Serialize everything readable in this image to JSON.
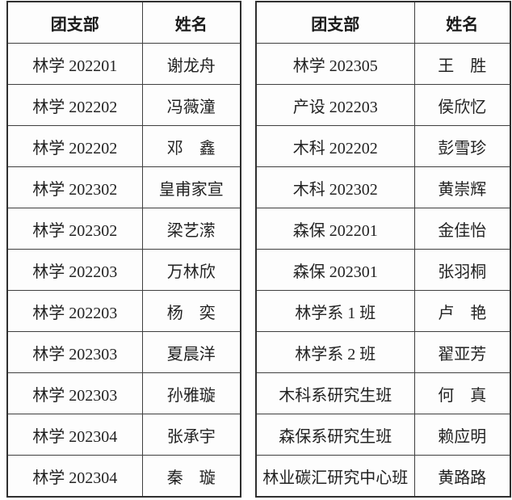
{
  "meta": {
    "description_colors": {
      "background": "#fefefe",
      "border": "#3f3f3f",
      "outer_border": "#2f2f2f",
      "text": "#222222"
    }
  },
  "tables": [
    {
      "id": "left",
      "headers": [
        "团支部",
        "姓名"
      ],
      "rows": [
        [
          "林学 202201",
          "谢龙舟"
        ],
        [
          "林学 202202",
          "冯薇潼"
        ],
        [
          "林学 202202",
          "邓　鑫"
        ],
        [
          "林学 202302",
          "皇甫家宣"
        ],
        [
          "林学 202302",
          "梁艺潆"
        ],
        [
          "林学 202203",
          "万林欣"
        ],
        [
          "林学 202203",
          "杨　奕"
        ],
        [
          "林学 202303",
          "夏晨洋"
        ],
        [
          "林学 202303",
          "孙雅璇"
        ],
        [
          "林学 202304",
          "张承宇"
        ],
        [
          "林学 202304",
          "秦　璇"
        ]
      ]
    },
    {
      "id": "right",
      "headers": [
        "团支部",
        "姓名"
      ],
      "rows": [
        [
          "林学 202305",
          "王　胜"
        ],
        [
          "产设 202203",
          "侯欣忆"
        ],
        [
          "木科 202202",
          "彭雪珍"
        ],
        [
          "木科 202302",
          "黄崇辉"
        ],
        [
          "森保 202201",
          "金佳怡"
        ],
        [
          "森保 202301",
          "张羽桐"
        ],
        [
          "林学系 1 班",
          "卢　艳"
        ],
        [
          "林学系 2 班",
          "翟亚芳"
        ],
        [
          "木科系研究生班",
          "何　真"
        ],
        [
          "森保系研究生班",
          "赖应明"
        ],
        [
          "林业碳汇研究中心班",
          "黄路路"
        ]
      ]
    }
  ]
}
